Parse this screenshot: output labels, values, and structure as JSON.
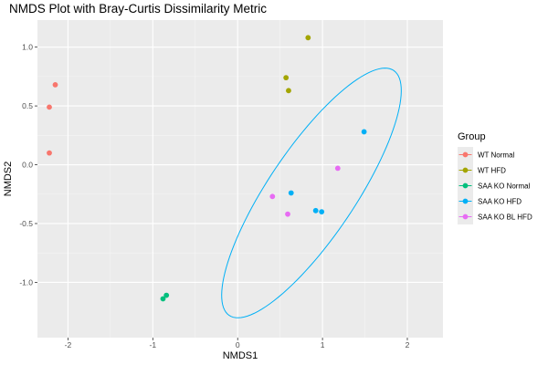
{
  "chart_data": {
    "type": "scatter",
    "title": "NMDS Plot with Bray-Curtis Dissimilarity Metric",
    "xlabel": "NMDS1",
    "ylabel": "NMDS2",
    "xlim": [
      -2.36,
      2.42
    ],
    "ylim": [
      -1.47,
      1.23
    ],
    "x_ticks": [
      -2,
      -1,
      0,
      1,
      2
    ],
    "y_ticks": [
      -1.0,
      -0.5,
      0.0,
      0.5,
      1.0
    ],
    "x_tick_labels": [
      "-2",
      "-1",
      "0",
      "1",
      "2"
    ],
    "y_tick_labels": [
      "-1.0",
      "-0.5",
      "0.0",
      "0.5",
      "1.0"
    ],
    "grid": true,
    "legend": {
      "title": "Group",
      "position": "right"
    },
    "series": [
      {
        "name": "WT Normal",
        "color": "#F8766D",
        "points": [
          [
            -2.15,
            0.68
          ],
          [
            -2.22,
            0.49
          ],
          [
            -2.22,
            0.1
          ]
        ]
      },
      {
        "name": "WT HFD",
        "color": "#A3A500",
        "points": [
          [
            0.83,
            1.08
          ],
          [
            0.57,
            0.74
          ],
          [
            0.6,
            0.63
          ]
        ]
      },
      {
        "name": "SAA KO Normal",
        "color": "#00BF7D",
        "points": [
          [
            -0.88,
            -1.14
          ],
          [
            -0.84,
            -1.11
          ]
        ]
      },
      {
        "name": "SAA KO HFD",
        "color": "#00B0F6",
        "points": [
          [
            1.49,
            0.28
          ],
          [
            0.63,
            -0.24
          ],
          [
            0.92,
            -0.39
          ],
          [
            0.99,
            -0.4
          ]
        ],
        "ellipse": {
          "center": [
            0.87,
            -0.24
          ],
          "semi_major": 1.43,
          "semi_minor": 0.45,
          "angle_deg": 45.1
        }
      },
      {
        "name": "SAA KO BL HFD",
        "color": "#E76BF3",
        "points": [
          [
            1.18,
            -0.03
          ],
          [
            0.41,
            -0.27
          ],
          [
            0.59,
            -0.42
          ]
        ]
      }
    ]
  }
}
